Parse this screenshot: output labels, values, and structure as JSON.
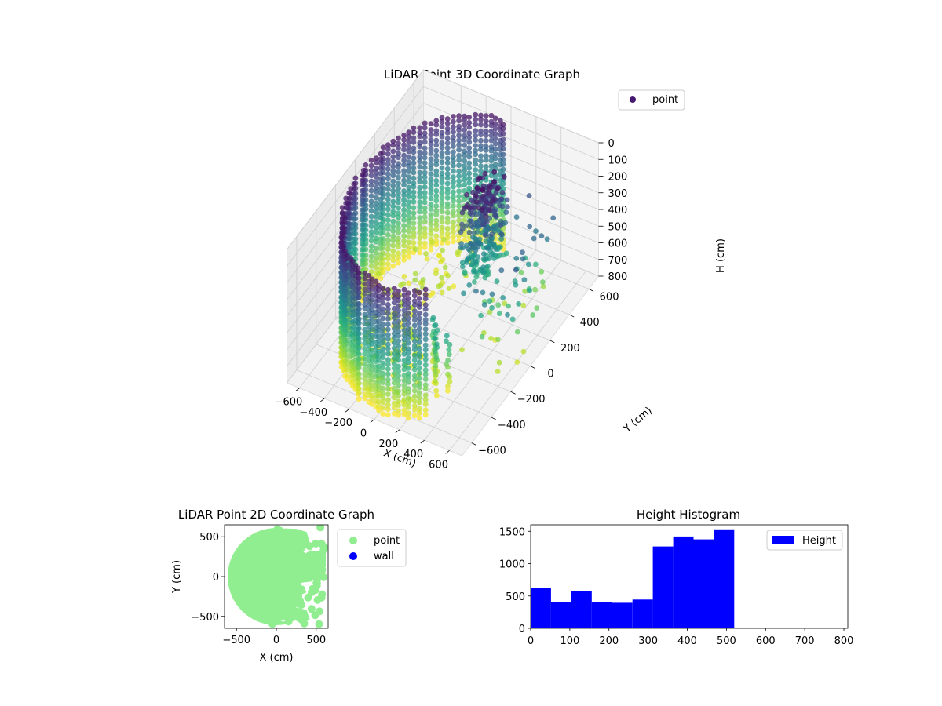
{
  "chart_data": [
    {
      "type": "scatter",
      "projection": "3d",
      "title": "LiDAR Point 3D Coordinate Graph",
      "xlabel": "X (cm)",
      "ylabel": "Y (cm)",
      "zlabel": "H (cm)",
      "xlim": [
        -700,
        700
      ],
      "ylim": [
        -700,
        700
      ],
      "zlim": [
        800,
        0
      ],
      "xticks": [
        -600,
        -400,
        -200,
        0,
        200,
        400,
        600
      ],
      "yticks": [
        -600,
        -400,
        -200,
        0,
        200,
        400,
        600
      ],
      "zticks": [
        0,
        100,
        200,
        300,
        400,
        500,
        600,
        700,
        800
      ],
      "colormap": "viridis",
      "legend": {
        "label": "point",
        "position": "top-right",
        "marker_color": "#46186f"
      },
      "grid": true,
      "series": [
        {
          "name": "point",
          "shape": "partial ring wall of radius ~620 cm spanning ~90°–300°, heights 0–800, plus a dense cluster of points near x≈150, y≈150 at heights 0–500 and scattered points toward +x"
        }
      ]
    },
    {
      "type": "scatter",
      "title": "LiDAR Point 2D Coordinate Graph",
      "xlabel": "X (cm)",
      "ylabel": "Y (cm)",
      "xlim": [
        -650,
        650
      ],
      "ylim": [
        -650,
        650
      ],
      "xticks": [
        -500,
        0,
        500
      ],
      "yticks": [
        -500,
        0,
        500
      ],
      "legend_position": "outside right",
      "series": [
        {
          "name": "point",
          "color": "#90ee90",
          "shape": "filled disc of radius ~610 cm, covering the left half and notched on the right side"
        },
        {
          "name": "wall",
          "color": "#0000ff",
          "values": []
        }
      ]
    },
    {
      "type": "bar",
      "title": "Height Histogram",
      "legend_position": "top-right",
      "xlim": [
        0,
        810
      ],
      "ylim": [
        0,
        1600
      ],
      "xticks": [
        0,
        100,
        200,
        300,
        400,
        500,
        600,
        700,
        800
      ],
      "yticks": [
        0,
        500,
        1000,
        1500
      ],
      "series": [
        {
          "name": "Height",
          "color": "#0000ff",
          "bin_edges": [
            0,
            52,
            104,
            156,
            208,
            260,
            312,
            364,
            416,
            468,
            520
          ],
          "values": [
            630,
            410,
            570,
            400,
            395,
            445,
            1265,
            1420,
            1375,
            1530
          ]
        }
      ]
    }
  ]
}
